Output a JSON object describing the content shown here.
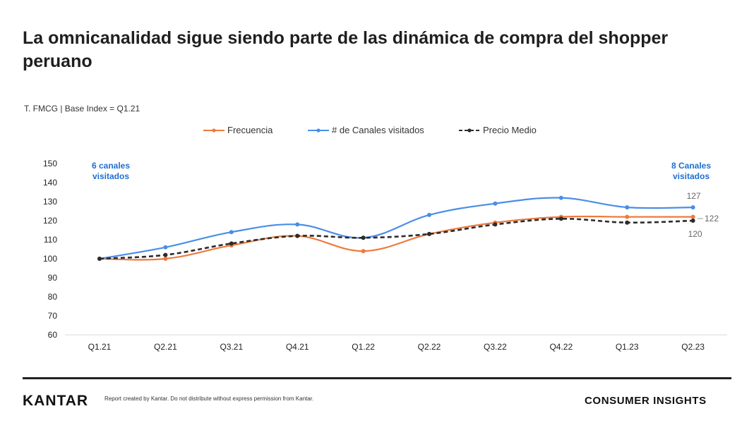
{
  "header": {
    "title": "La omnicanalidad sigue siendo parte de las dinámica de compra del shopper peruano",
    "subtitle": "T. FMCG | Base Index  = Q1.21"
  },
  "footer": {
    "logo": "KANTAR",
    "disclaimer": "Report created by Kantar. Do not distribute without express permission from Kantar.",
    "section": "CONSUMER INSIGHTS"
  },
  "chart_data": {
    "type": "line",
    "categories": [
      "Q1.21",
      "Q2.21",
      "Q3.21",
      "Q4.21",
      "Q1.22",
      "Q2.22",
      "Q3.22",
      "Q4.22",
      "Q1.23",
      "Q2.23"
    ],
    "ylim": [
      60,
      150
    ],
    "yticks": [
      150,
      140,
      130,
      120,
      110,
      100,
      90,
      80,
      70,
      60
    ],
    "grid": false,
    "legend_position": "top",
    "series": [
      {
        "name": "Frecuencia",
        "color": "#ee7a3c",
        "style": "solid",
        "values": [
          100,
          100,
          107,
          112,
          104,
          113,
          119,
          122,
          122,
          122
        ]
      },
      {
        "name": "# de Canales visitados",
        "color": "#4a8ee6",
        "style": "solid",
        "values": [
          100,
          106,
          114,
          118,
          111,
          123,
          129,
          132,
          127,
          127
        ]
      },
      {
        "name": "Precio Medio",
        "color": "#2b2b2b",
        "style": "dashed",
        "values": [
          100,
          102,
          108,
          112,
          111,
          113,
          118,
          121,
          119,
          120
        ]
      }
    ],
    "annotations": [
      {
        "text": [
          "6 canales",
          "visitados"
        ],
        "category": "Q1.21"
      },
      {
        "text": [
          "8 Canales",
          "visitados"
        ],
        "category": "Q2.23"
      }
    ],
    "end_labels": [
      "127",
      "122",
      "120"
    ]
  }
}
